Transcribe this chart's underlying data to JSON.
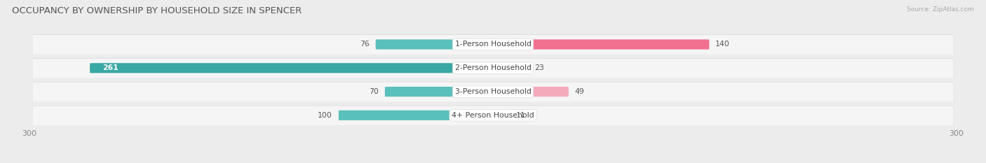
{
  "title": "OCCUPANCY BY OWNERSHIP BY HOUSEHOLD SIZE IN SPENCER",
  "source": "Source: ZipAtlas.com",
  "categories": [
    "1-Person Household",
    "2-Person Household",
    "3-Person Household",
    "4+ Person Household"
  ],
  "owner_values": [
    76,
    261,
    70,
    100
  ],
  "renter_values": [
    140,
    23,
    49,
    11
  ],
  "owner_color": "#5bbfbb",
  "owner_color_dark": "#3aa8a4",
  "renter_color": "#f07090",
  "renter_color_light": "#f5aabb",
  "axis_max": 300,
  "axis_min": -300,
  "bg_color": "#ececec",
  "row_bg_color": "#f5f5f5",
  "row_border_color": "#d8d8d8",
  "title_fontsize": 9.5,
  "label_fontsize": 7.8,
  "tick_fontsize": 8.0,
  "value_fontsize": 7.8
}
